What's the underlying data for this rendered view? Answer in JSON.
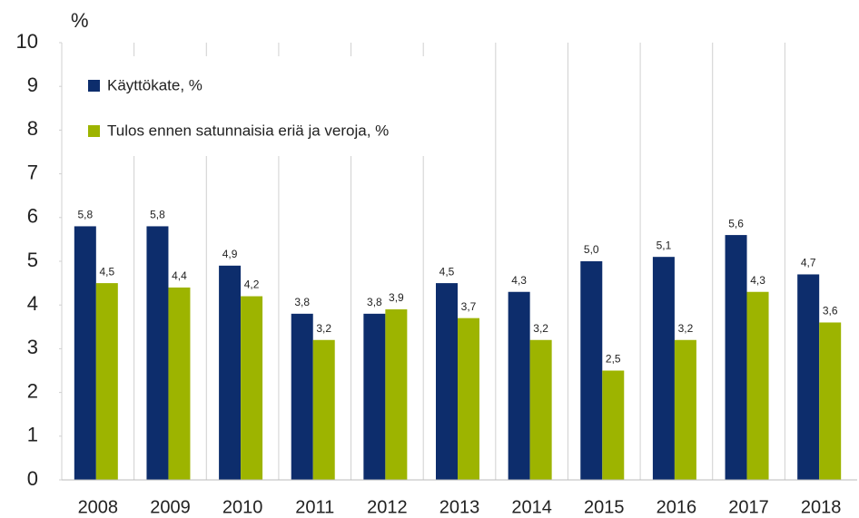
{
  "chart_data": {
    "type": "bar",
    "y_label": "%",
    "categories": [
      "2008",
      "2009",
      "2010",
      "2011",
      "2012",
      "2013",
      "2014",
      "2015",
      "2016",
      "2017",
      "2018"
    ],
    "series": [
      {
        "name": "Käyttökate, %",
        "color": "#0d2d6c",
        "values": [
          5.8,
          5.8,
          4.9,
          3.8,
          3.8,
          4.5,
          4.3,
          5.0,
          5.1,
          5.6,
          4.7
        ],
        "value_labels": [
          "5,8",
          "5,8",
          "4,9",
          "3,8",
          "3,8",
          "4,5",
          "4,3",
          "5,0",
          "5,1",
          "5,6",
          "4,7"
        ]
      },
      {
        "name": "Tulos ennen satunnaisia eriä ja veroja, %",
        "color": "#9db400",
        "values": [
          4.5,
          4.4,
          4.2,
          3.2,
          3.9,
          3.7,
          3.2,
          2.5,
          3.2,
          4.3,
          3.6
        ],
        "value_labels": [
          "4,5",
          "4,4",
          "4,2",
          "3,2",
          "3,9",
          "3,7",
          "3,2",
          "2,5",
          "3,2",
          "4,3",
          "3,6"
        ]
      }
    ],
    "ylim": [
      0,
      10
    ],
    "yticks": [
      0,
      1,
      2,
      3,
      4,
      5,
      6,
      7,
      8,
      9,
      10
    ],
    "legend": "upper left"
  }
}
